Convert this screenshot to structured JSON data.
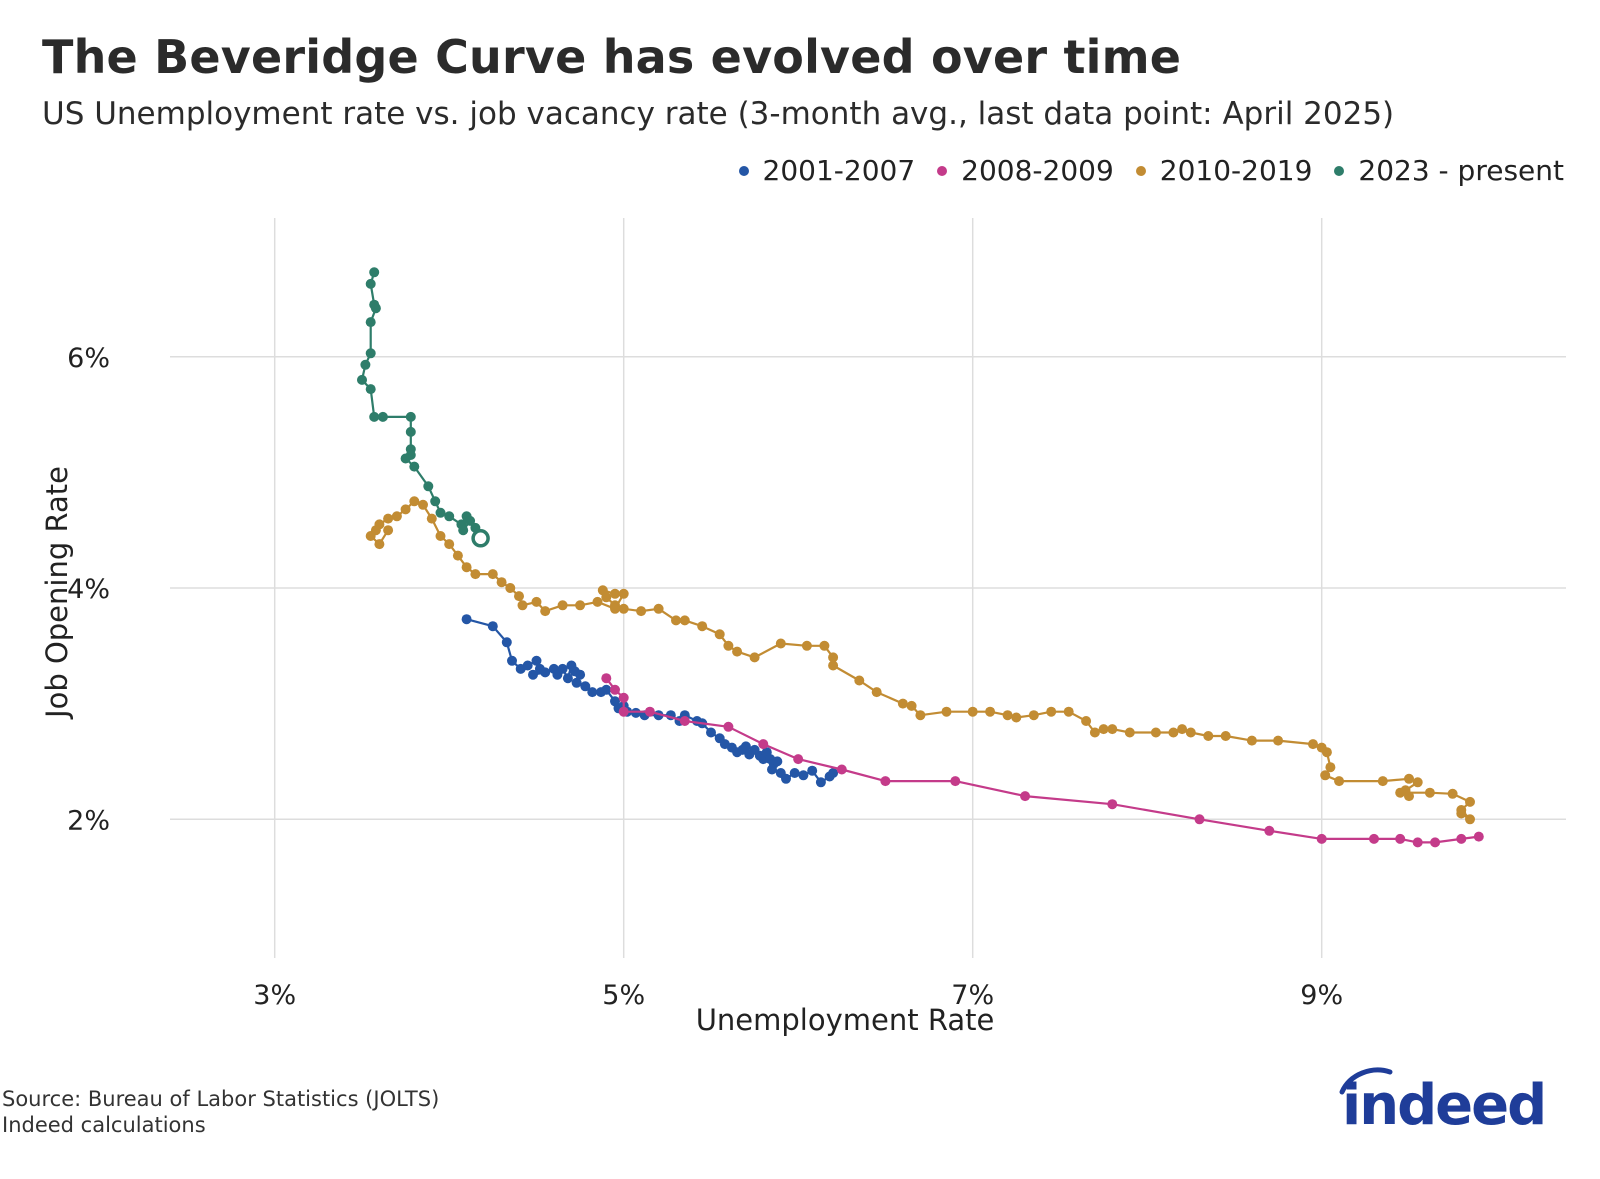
{
  "title": "The Beveridge Curve has evolved over time",
  "subtitle": "US Unemployment rate vs. job vacancy rate (3-month avg., last data point: April 2025)",
  "source_lines": [
    "Source: Bureau of Labor Statistics (JOLTS)",
    "Indeed calculations"
  ],
  "logo_text": "indeed",
  "colors": {
    "s2001": "#2456a6",
    "s2008": "#c43b8a",
    "s2010": "#c28c33",
    "s2023": "#2e7d6a",
    "grid": "#dddddd",
    "logo": "#1f3d99"
  },
  "chart_data": {
    "type": "scatter",
    "title": "The Beveridge Curve has evolved over time",
    "subtitle": "US Unemployment rate vs. job vacancy rate (3-month avg., last data point: April 2025)",
    "xlabel": "Unemployment Rate",
    "ylabel": "Job Opening Rate",
    "xlim": [
      2.4,
      10.4
    ],
    "ylim": [
      0.8,
      7.2
    ],
    "x_ticks": [
      3,
      5,
      7,
      9
    ],
    "x_tick_labels": [
      "3%",
      "5%",
      "7%",
      "9%"
    ],
    "y_ticks": [
      2,
      4,
      6
    ],
    "y_tick_labels": [
      "2%",
      "4%",
      "6%"
    ],
    "grid": true,
    "legend_position": "top-right",
    "series": [
      {
        "name": "2001-2007",
        "color": "#2456a6",
        "points": [
          [
            4.1,
            3.73
          ],
          [
            4.25,
            3.67
          ],
          [
            4.33,
            3.53
          ],
          [
            4.36,
            3.37
          ],
          [
            4.41,
            3.3
          ],
          [
            4.45,
            3.33
          ],
          [
            4.5,
            3.37
          ],
          [
            4.52,
            3.3
          ],
          [
            4.48,
            3.25
          ],
          [
            4.55,
            3.27
          ],
          [
            4.6,
            3.3
          ],
          [
            4.62,
            3.25
          ],
          [
            4.65,
            3.3
          ],
          [
            4.68,
            3.22
          ],
          [
            4.7,
            3.33
          ],
          [
            4.72,
            3.28
          ],
          [
            4.75,
            3.25
          ],
          [
            4.73,
            3.18
          ],
          [
            4.78,
            3.15
          ],
          [
            4.82,
            3.1
          ],
          [
            4.87,
            3.1
          ],
          [
            4.9,
            3.12
          ],
          [
            4.95,
            3.02
          ],
          [
            4.97,
            2.96
          ],
          [
            5.0,
            2.98
          ],
          [
            5.02,
            2.93
          ],
          [
            5.07,
            2.92
          ],
          [
            5.12,
            2.9
          ],
          [
            5.2,
            2.9
          ],
          [
            5.27,
            2.9
          ],
          [
            5.32,
            2.85
          ],
          [
            5.35,
            2.9
          ],
          [
            5.42,
            2.85
          ],
          [
            5.45,
            2.83
          ],
          [
            5.5,
            2.75
          ],
          [
            5.55,
            2.7
          ],
          [
            5.58,
            2.65
          ],
          [
            5.62,
            2.62
          ],
          [
            5.65,
            2.58
          ],
          [
            5.68,
            2.6
          ],
          [
            5.7,
            2.63
          ],
          [
            5.72,
            2.56
          ],
          [
            5.75,
            2.6
          ],
          [
            5.78,
            2.55
          ],
          [
            5.8,
            2.52
          ],
          [
            5.82,
            2.58
          ],
          [
            5.84,
            2.52
          ],
          [
            5.86,
            2.48
          ],
          [
            5.88,
            2.5
          ],
          [
            5.85,
            2.43
          ],
          [
            5.9,
            2.4
          ],
          [
            5.93,
            2.35
          ],
          [
            5.98,
            2.4
          ],
          [
            6.03,
            2.38
          ],
          [
            6.08,
            2.42
          ],
          [
            6.13,
            2.32
          ],
          [
            6.18,
            2.37
          ],
          [
            6.2,
            2.4
          ]
        ]
      },
      {
        "name": "2008-2009",
        "color": "#c43b8a",
        "points": [
          [
            4.9,
            3.22
          ],
          [
            4.95,
            3.12
          ],
          [
            5.0,
            3.05
          ],
          [
            5.0,
            2.93
          ],
          [
            5.15,
            2.93
          ],
          [
            5.35,
            2.85
          ],
          [
            5.6,
            2.8
          ],
          [
            5.8,
            2.65
          ],
          [
            6.0,
            2.52
          ],
          [
            6.25,
            2.43
          ],
          [
            6.5,
            2.33
          ],
          [
            6.9,
            2.33
          ],
          [
            7.3,
            2.2
          ],
          [
            7.8,
            2.13
          ],
          [
            8.3,
            2.0
          ],
          [
            8.7,
            1.9
          ],
          [
            9.0,
            1.83
          ],
          [
            9.3,
            1.83
          ],
          [
            9.45,
            1.83
          ],
          [
            9.55,
            1.8
          ],
          [
            9.65,
            1.8
          ],
          [
            9.8,
            1.83
          ],
          [
            9.9,
            1.85
          ]
        ]
      },
      {
        "name": "2010-2019",
        "color": "#c28c33",
        "points": [
          [
            9.8,
            2.05
          ],
          [
            9.85,
            2.0
          ],
          [
            9.8,
            2.08
          ],
          [
            9.85,
            2.15
          ],
          [
            9.75,
            2.22
          ],
          [
            9.62,
            2.23
          ],
          [
            9.45,
            2.23
          ],
          [
            9.5,
            2.2
          ],
          [
            9.48,
            2.25
          ],
          [
            9.55,
            2.32
          ],
          [
            9.5,
            2.35
          ],
          [
            9.35,
            2.33
          ],
          [
            9.1,
            2.33
          ],
          [
            9.02,
            2.38
          ],
          [
            9.05,
            2.45
          ],
          [
            9.03,
            2.58
          ],
          [
            9.0,
            2.62
          ],
          [
            8.95,
            2.65
          ],
          [
            8.75,
            2.68
          ],
          [
            8.6,
            2.68
          ],
          [
            8.45,
            2.72
          ],
          [
            8.35,
            2.72
          ],
          [
            8.25,
            2.75
          ],
          [
            8.2,
            2.78
          ],
          [
            8.15,
            2.75
          ],
          [
            8.05,
            2.75
          ],
          [
            7.9,
            2.75
          ],
          [
            7.8,
            2.78
          ],
          [
            7.75,
            2.78
          ],
          [
            7.7,
            2.75
          ],
          [
            7.65,
            2.85
          ],
          [
            7.55,
            2.93
          ],
          [
            7.45,
            2.93
          ],
          [
            7.35,
            2.9
          ],
          [
            7.25,
            2.88
          ],
          [
            7.2,
            2.9
          ],
          [
            7.1,
            2.93
          ],
          [
            7.0,
            2.93
          ],
          [
            6.85,
            2.93
          ],
          [
            6.7,
            2.9
          ],
          [
            6.65,
            2.98
          ],
          [
            6.6,
            3.0
          ],
          [
            6.45,
            3.1
          ],
          [
            6.35,
            3.2
          ],
          [
            6.2,
            3.33
          ],
          [
            6.2,
            3.4
          ],
          [
            6.15,
            3.5
          ],
          [
            6.05,
            3.5
          ],
          [
            5.9,
            3.52
          ],
          [
            5.75,
            3.4
          ],
          [
            5.65,
            3.45
          ],
          [
            5.6,
            3.5
          ],
          [
            5.55,
            3.6
          ],
          [
            5.45,
            3.67
          ],
          [
            5.35,
            3.72
          ],
          [
            5.3,
            3.72
          ],
          [
            5.2,
            3.82
          ],
          [
            5.1,
            3.8
          ],
          [
            5.0,
            3.82
          ],
          [
            4.95,
            3.85
          ],
          [
            4.9,
            3.92
          ],
          [
            4.88,
            3.98
          ],
          [
            4.95,
            3.95
          ],
          [
            5.0,
            3.95
          ],
          [
            4.95,
            3.82
          ],
          [
            4.85,
            3.88
          ],
          [
            4.75,
            3.85
          ],
          [
            4.65,
            3.85
          ],
          [
            4.55,
            3.8
          ],
          [
            4.5,
            3.88
          ],
          [
            4.42,
            3.85
          ],
          [
            4.4,
            3.93
          ],
          [
            4.35,
            4.0
          ],
          [
            4.3,
            4.05
          ],
          [
            4.25,
            4.12
          ],
          [
            4.15,
            4.12
          ],
          [
            4.1,
            4.18
          ],
          [
            4.05,
            4.28
          ],
          [
            4.0,
            4.38
          ],
          [
            3.95,
            4.45
          ],
          [
            3.9,
            4.6
          ],
          [
            3.85,
            4.72
          ],
          [
            3.8,
            4.75
          ],
          [
            3.75,
            4.68
          ],
          [
            3.7,
            4.62
          ],
          [
            3.65,
            4.6
          ],
          [
            3.6,
            4.55
          ],
          [
            3.58,
            4.5
          ],
          [
            3.55,
            4.45
          ],
          [
            3.6,
            4.38
          ],
          [
            3.65,
            4.5
          ]
        ]
      },
      {
        "name": "2023 - present",
        "color": "#2e7d6a",
        "points": [
          [
            3.57,
            6.73
          ],
          [
            3.55,
            6.63
          ],
          [
            3.57,
            6.45
          ],
          [
            3.58,
            6.42
          ],
          [
            3.55,
            6.3
          ],
          [
            3.55,
            6.03
          ],
          [
            3.52,
            5.93
          ],
          [
            3.5,
            5.8
          ],
          [
            3.55,
            5.72
          ],
          [
            3.57,
            5.48
          ],
          [
            3.62,
            5.48
          ],
          [
            3.78,
            5.48
          ],
          [
            3.78,
            5.35
          ],
          [
            3.78,
            5.2
          ],
          [
            3.78,
            5.15
          ],
          [
            3.75,
            5.12
          ],
          [
            3.8,
            5.05
          ],
          [
            3.88,
            4.88
          ],
          [
            3.92,
            4.75
          ],
          [
            3.95,
            4.65
          ],
          [
            4.0,
            4.62
          ],
          [
            4.07,
            4.55
          ],
          [
            4.1,
            4.62
          ],
          [
            4.08,
            4.5
          ],
          [
            4.12,
            4.58
          ],
          [
            4.15,
            4.52
          ],
          [
            4.18,
            4.43
          ]
        ]
      }
    ],
    "last_point_marker": {
      "series": "2023 - present",
      "x": 4.18,
      "y": 4.43,
      "style": "hollow-circle"
    }
  }
}
